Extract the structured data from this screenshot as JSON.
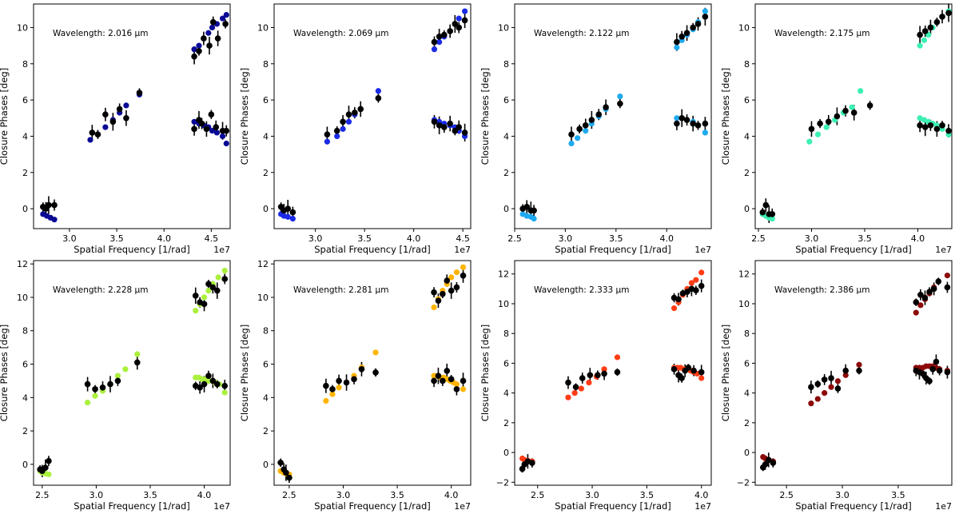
{
  "figure": {
    "xlabel": "Spatial Frequency [1/rad]",
    "ylabel": "Closure Phases [deg]",
    "offset_label": "1e7"
  },
  "chart_data": [
    {
      "type": "scatter",
      "wavelength_label": "Wavelength: 2.016 μm",
      "color": "#0a0a96",
      "xlim": [
        2.62,
        4.7
      ],
      "ylim": [
        -1.1,
        11.3
      ],
      "xticks": [
        "3.0",
        "3.5",
        "4.0",
        "4.5"
      ],
      "yticks": [
        "0",
        "2",
        "4",
        "6",
        "8",
        "10"
      ],
      "observed_x": [
        2.72,
        2.75,
        2.78,
        2.84,
        3.24,
        3.3,
        3.38,
        3.46,
        3.53,
        3.6,
        3.74,
        4.32,
        4.37,
        4.4,
        4.45,
        4.5,
        4.55,
        4.62,
        4.66,
        4.32,
        4.37,
        4.42,
        4.48,
        4.52,
        4.57,
        4.65
      ],
      "observed_y": [
        0.1,
        0.0,
        0.2,
        0.2,
        4.2,
        4.1,
        5.2,
        4.8,
        5.5,
        5.0,
        6.4,
        4.4,
        4.9,
        4.7,
        4.4,
        5.2,
        4.5,
        4.3,
        4.3,
        8.4,
        8.7,
        9.4,
        9.0,
        10.3,
        9.4,
        10.2
      ],
      "model_x": [
        2.72,
        2.76,
        2.8,
        2.84,
        3.22,
        3.3,
        3.38,
        3.46,
        3.53,
        3.6,
        3.74,
        4.32,
        4.37,
        4.42,
        4.47,
        4.51,
        4.56,
        4.62,
        4.66,
        4.32,
        4.37,
        4.42,
        4.47,
        4.51,
        4.56,
        4.62,
        4.66
      ],
      "model_y": [
        -0.3,
        -0.4,
        -0.5,
        -0.6,
        3.8,
        4.1,
        4.5,
        4.9,
        5.3,
        5.7,
        6.3,
        4.8,
        4.7,
        4.6,
        4.5,
        4.3,
        4.2,
        4.0,
        3.6,
        8.8,
        9.0,
        9.4,
        9.7,
        10.0,
        10.2,
        10.5,
        10.7
      ]
    },
    {
      "type": "scatter",
      "wavelength_label": "Wavelength: 2.069 μm",
      "color": "#1a2ae6",
      "xlim": [
        2.58,
        4.58
      ],
      "ylim": [
        -1.1,
        11.3
      ],
      "xticks": [
        "3.0",
        "3.5",
        "4.0",
        "4.5"
      ],
      "yticks": [
        "0",
        "2",
        "4",
        "6",
        "8",
        "10"
      ],
      "observed_x": [
        2.65,
        2.68,
        2.72,
        2.77,
        3.12,
        3.22,
        3.28,
        3.34,
        3.4,
        3.46,
        3.64,
        4.21,
        4.26,
        4.31,
        4.37,
        4.42,
        4.46,
        4.52,
        4.21,
        4.26,
        4.31,
        4.37,
        4.42,
        4.46,
        4.52
      ],
      "observed_y": [
        0.1,
        -0.1,
        0.0,
        -0.2,
        4.1,
        4.3,
        4.8,
        5.2,
        5.3,
        5.5,
        6.1,
        4.8,
        4.6,
        4.5,
        4.7,
        4.3,
        4.5,
        4.2,
        9.2,
        9.5,
        9.6,
        9.8,
        10.2,
        10.0,
        10.4
      ],
      "model_x": [
        2.65,
        2.68,
        2.72,
        2.77,
        3.12,
        3.22,
        3.28,
        3.34,
        3.4,
        3.46,
        3.64,
        4.21,
        4.26,
        4.31,
        4.37,
        4.42,
        4.46,
        4.52,
        4.21,
        4.26,
        4.31,
        4.37,
        4.42,
        4.46,
        4.52
      ],
      "model_y": [
        -0.3,
        -0.4,
        -0.45,
        -0.55,
        3.7,
        4.0,
        4.4,
        4.8,
        5.2,
        5.5,
        6.5,
        4.9,
        4.8,
        4.7,
        4.6,
        4.5,
        4.3,
        4.0,
        8.8,
        9.2,
        9.5,
        9.8,
        10.2,
        10.5,
        10.9
      ]
    },
    {
      "type": "scatter",
      "wavelength_label": "Wavelength: 2.122 μm",
      "color": "#1eaaf0",
      "xlim": [
        2.5,
        4.44
      ],
      "ylim": [
        -1.1,
        11.3
      ],
      "xticks": [
        "2.5",
        "3.0",
        "3.5",
        "4.0"
      ],
      "yticks": [
        "0",
        "2",
        "4",
        "6",
        "8",
        "10"
      ],
      "observed_x": [
        2.58,
        2.62,
        2.66,
        2.69,
        3.06,
        3.14,
        3.2,
        3.26,
        3.33,
        3.4,
        3.54,
        4.1,
        4.15,
        4.2,
        4.26,
        4.31,
        4.38,
        4.1,
        4.15,
        4.2,
        4.26,
        4.31,
        4.38
      ],
      "observed_y": [
        0.0,
        0.1,
        -0.1,
        -0.1,
        4.1,
        4.4,
        4.6,
        4.9,
        5.2,
        5.6,
        5.8,
        4.7,
        5.0,
        4.9,
        4.7,
        4.6,
        4.7,
        9.2,
        9.5,
        9.7,
        10.0,
        10.2,
        10.6
      ],
      "model_x": [
        2.58,
        2.62,
        2.66,
        2.69,
        3.06,
        3.12,
        3.2,
        3.26,
        3.33,
        3.4,
        3.54,
        4.1,
        4.15,
        4.2,
        4.26,
        4.31,
        4.38,
        4.1,
        4.15,
        4.2,
        4.26,
        4.31,
        4.38
      ],
      "model_y": [
        -0.3,
        -0.4,
        -0.45,
        -0.55,
        3.6,
        3.9,
        4.3,
        4.7,
        5.1,
        5.5,
        6.2,
        5.0,
        5.0,
        4.9,
        4.8,
        4.6,
        4.2,
        8.9,
        9.3,
        9.6,
        9.9,
        10.3,
        10.9
      ]
    },
    {
      "type": "scatter",
      "wavelength_label": "Wavelength: 2.175 μm",
      "color": "#3cf0b4",
      "xlim": [
        2.47,
        4.32
      ],
      "ylim": [
        -1.1,
        11.3
      ],
      "xticks": [
        "2.5",
        "3.0",
        "3.5",
        "4.0"
      ],
      "yticks": [
        "0",
        "2",
        "4",
        "6",
        "8",
        "10"
      ],
      "observed_x": [
        2.54,
        2.57,
        2.6,
        2.63,
        3.0,
        3.08,
        3.16,
        3.24,
        3.32,
        3.4,
        3.55,
        4.02,
        4.07,
        4.12,
        4.18,
        4.23,
        4.29,
        4.02,
        4.07,
        4.12,
        4.18,
        4.23,
        4.29
      ],
      "observed_y": [
        -0.2,
        0.2,
        -0.3,
        -0.3,
        4.4,
        4.7,
        4.8,
        5.1,
        5.4,
        5.3,
        5.7,
        4.6,
        4.5,
        4.6,
        4.4,
        4.6,
        4.3,
        9.6,
        9.8,
        10.0,
        10.3,
        10.6,
        10.8
      ],
      "model_x": [
        2.54,
        2.57,
        2.6,
        2.63,
        2.98,
        3.06,
        3.14,
        3.22,
        3.3,
        3.38,
        3.46,
        4.02,
        4.06,
        4.1,
        4.14,
        4.18,
        4.23,
        4.29,
        4.02,
        4.06,
        4.1,
        4.14,
        4.18,
        4.23,
        4.29
      ],
      "model_y": [
        -0.3,
        -0.4,
        -0.5,
        -0.55,
        3.7,
        4.1,
        4.5,
        4.9,
        5.3,
        5.6,
        6.5,
        5.0,
        4.9,
        4.8,
        4.7,
        4.6,
        4.4,
        4.1,
        9.0,
        9.3,
        9.6,
        10.0,
        10.3,
        10.6,
        10.9
      ]
    },
    {
      "type": "scatter",
      "wavelength_label": "Wavelength: 2.228 μm",
      "color": "#aaf03c",
      "xlim": [
        2.42,
        4.24
      ],
      "ylim": [
        -1.25,
        12.2
      ],
      "xticks": [
        "2.5",
        "3.0",
        "3.5",
        "4.0"
      ],
      "yticks": [
        "0",
        "2",
        "4",
        "6",
        "8",
        "10",
        "12"
      ],
      "observed_x": [
        2.48,
        2.5,
        2.53,
        2.56,
        2.92,
        2.99,
        3.06,
        3.13,
        3.2,
        3.38,
        3.92,
        3.96,
        4.0,
        4.04,
        4.08,
        4.12,
        4.19,
        3.92,
        3.96,
        4.0,
        4.04,
        4.08,
        4.12,
        4.19
      ],
      "observed_y": [
        -0.3,
        -0.4,
        -0.2,
        0.2,
        4.8,
        4.5,
        4.6,
        4.8,
        5.0,
        6.1,
        4.7,
        4.6,
        4.8,
        5.3,
        5.0,
        4.8,
        4.7,
        10.1,
        9.7,
        9.6,
        10.8,
        10.6,
        10.4,
        11.1
      ],
      "model_x": [
        2.48,
        2.5,
        2.53,
        2.56,
        2.92,
        2.99,
        3.06,
        3.13,
        3.2,
        3.27,
        3.38,
        3.92,
        3.95,
        3.98,
        4.01,
        4.04,
        4.07,
        4.1,
        4.14,
        4.19,
        3.92,
        3.96,
        4.0,
        4.04,
        4.08,
        4.13,
        4.19
      ],
      "model_y": [
        -0.4,
        -0.5,
        -0.55,
        -0.6,
        3.7,
        4.1,
        4.4,
        4.8,
        5.3,
        5.7,
        6.6,
        5.2,
        5.2,
        5.1,
        5.1,
        5.0,
        5.0,
        4.9,
        4.8,
        4.3,
        9.2,
        9.6,
        10.0,
        10.4,
        10.8,
        11.2,
        11.6
      ]
    },
    {
      "type": "scatter",
      "wavelength_label": "Wavelength: 2.281 μm",
      "color": "#ffb400",
      "xlim": [
        2.36,
        4.18
      ],
      "ylim": [
        -1.25,
        12.2
      ],
      "xticks": [
        "2.5",
        "3.0",
        "3.5",
        "4.0"
      ],
      "yticks": [
        "0",
        "2",
        "4",
        "6",
        "8",
        "10",
        "12"
      ],
      "observed_x": [
        2.42,
        2.45,
        2.47,
        2.5,
        2.84,
        2.9,
        2.96,
        3.03,
        3.1,
        3.17,
        3.3,
        3.84,
        3.88,
        3.92,
        3.96,
        4.0,
        4.05,
        4.11,
        3.84,
        3.88,
        3.92,
        3.96,
        4.0,
        4.05,
        4.11
      ],
      "observed_y": [
        0.1,
        -0.3,
        -0.5,
        -0.8,
        4.7,
        4.5,
        5.0,
        4.9,
        5.1,
        5.7,
        5.5,
        5.0,
        5.3,
        5.0,
        5.6,
        5.1,
        4.5,
        5.0,
        10.3,
        9.8,
        10.2,
        11.0,
        10.4,
        10.6,
        11.3
      ],
      "model_x": [
        2.42,
        2.45,
        2.47,
        2.5,
        2.84,
        2.9,
        2.96,
        3.03,
        3.1,
        3.17,
        3.3,
        3.84,
        3.87,
        3.9,
        3.93,
        3.96,
        3.99,
        4.02,
        4.05,
        4.11,
        3.84,
        3.88,
        3.92,
        3.96,
        4.0,
        4.05,
        4.11
      ],
      "model_y": [
        -0.4,
        -0.5,
        -0.55,
        -0.6,
        3.8,
        4.2,
        4.6,
        4.9,
        5.3,
        5.8,
        6.7,
        5.3,
        5.3,
        5.2,
        5.2,
        5.1,
        5.0,
        4.9,
        4.8,
        4.5,
        9.4,
        9.9,
        10.4,
        10.8,
        11.2,
        11.5,
        11.8
      ]
    },
    {
      "type": "scatter",
      "wavelength_label": "Wavelength: 2.333 μm",
      "color": "#ff3c14",
      "xlim": [
        2.29,
        4.09
      ],
      "ylim": [
        -2.2,
        12.9
      ],
      "xticks": [
        "2.5",
        "3.0",
        "3.5",
        "4.0"
      ],
      "yticks": [
        "−2",
        "0",
        "2",
        "4",
        "6",
        "8",
        "10",
        "12"
      ],
      "observed_x": [
        2.36,
        2.38,
        2.41,
        2.45,
        2.78,
        2.85,
        2.91,
        2.98,
        3.05,
        3.11,
        3.23,
        3.75,
        3.79,
        3.82,
        3.85,
        3.88,
        3.93,
        4.0,
        3.75,
        3.79,
        3.83,
        3.87,
        3.91,
        3.95,
        4.0
      ],
      "observed_y": [
        -1.1,
        -0.8,
        -0.6,
        -0.7,
        4.7,
        4.4,
        5.0,
        5.2,
        5.2,
        5.3,
        5.4,
        5.6,
        5.2,
        5.0,
        5.5,
        5.7,
        5.5,
        5.4,
        10.4,
        10.3,
        10.7,
        10.8,
        11.0,
        10.9,
        11.2
      ],
      "model_x": [
        2.36,
        2.38,
        2.41,
        2.45,
        2.78,
        2.84,
        2.9,
        2.97,
        3.04,
        3.11,
        3.23,
        3.75,
        3.78,
        3.81,
        3.84,
        3.87,
        3.9,
        3.93,
        3.96,
        4.0,
        3.75,
        3.79,
        3.83,
        3.87,
        3.91,
        3.95,
        4.0
      ],
      "model_y": [
        -0.4,
        -0.5,
        -0.55,
        -0.6,
        3.7,
        4.0,
        4.3,
        4.7,
        5.1,
        5.6,
        6.4,
        5.7,
        5.7,
        5.7,
        5.6,
        5.6,
        5.5,
        5.4,
        5.3,
        5.0,
        9.7,
        10.1,
        10.6,
        11.0,
        11.4,
        11.6,
        12.1
      ]
    },
    {
      "type": "scatter",
      "wavelength_label": "Wavelength: 2.386 μm",
      "color": "#8c0a0a",
      "xlim": [
        2.22,
        3.98
      ],
      "ylim": [
        -2.2,
        12.9
      ],
      "xticks": [
        "2.5",
        "3.0",
        "3.5"
      ],
      "yticks": [
        "−2",
        "0",
        "2",
        "4",
        "6",
        "8",
        "10",
        "12"
      ],
      "observed_x": [
        2.29,
        2.31,
        2.34,
        2.38,
        2.72,
        2.78,
        2.84,
        2.9,
        2.96,
        3.03,
        3.15,
        3.66,
        3.69,
        3.72,
        3.75,
        3.78,
        3.81,
        3.84,
        3.87,
        3.94,
        3.66,
        3.7,
        3.74,
        3.78,
        3.82,
        3.86,
        3.94
      ],
      "observed_y": [
        -1.0,
        -0.8,
        -0.5,
        -0.7,
        4.4,
        4.6,
        4.9,
        5.0,
        4.3,
        5.5,
        5.5,
        5.5,
        5.4,
        5.3,
        5.0,
        4.8,
        5.6,
        6.1,
        5.5,
        5.4,
        10.1,
        10.6,
        10.4,
        10.8,
        11.0,
        11.5,
        11.1
      ],
      "model_x": [
        2.29,
        2.31,
        2.34,
        2.38,
        2.72,
        2.78,
        2.84,
        2.9,
        2.96,
        3.03,
        3.15,
        3.66,
        3.69,
        3.72,
        3.75,
        3.78,
        3.81,
        3.84,
        3.87,
        3.94,
        3.66,
        3.7,
        3.74,
        3.78,
        3.82,
        3.86,
        3.94
      ],
      "model_y": [
        -0.3,
        -0.4,
        -0.5,
        -0.6,
        3.3,
        3.6,
        4.0,
        4.4,
        4.8,
        5.2,
        5.9,
        5.7,
        5.7,
        5.7,
        5.8,
        5.8,
        5.8,
        5.7,
        5.6,
        5.5,
        9.4,
        9.9,
        10.3,
        10.7,
        11.1,
        11.5,
        11.9
      ]
    }
  ]
}
